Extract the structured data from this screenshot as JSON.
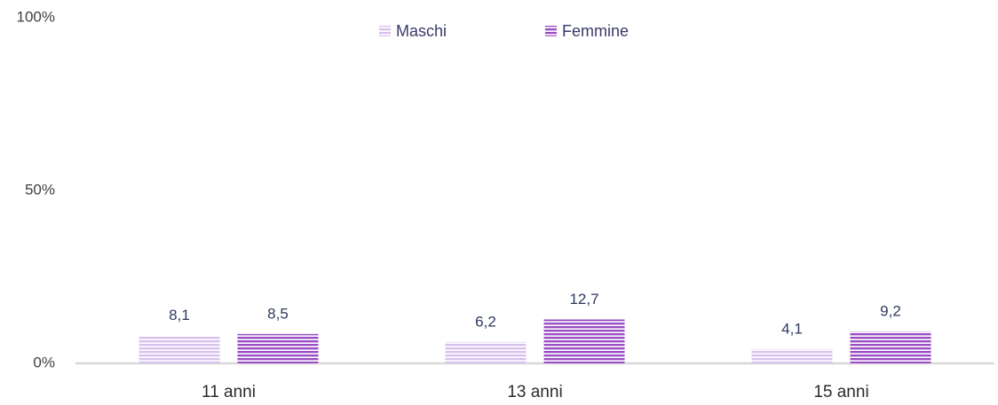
{
  "chart_data": {
    "type": "bar",
    "categories": [
      "11 anni",
      "13 anni",
      "15 anni"
    ],
    "series": [
      {
        "name": "Maschi",
        "color": "#d8c1ee",
        "values": [
          8.1,
          6.2,
          4.1
        ],
        "value_labels": [
          "8,1",
          "6,2",
          "4,1"
        ]
      },
      {
        "name": "Femmine",
        "color": "#9a4ec4",
        "values": [
          8.5,
          12.7,
          9.2
        ],
        "value_labels": [
          "8,5",
          "12,7",
          "9,2"
        ]
      }
    ],
    "ylim": [
      0,
      100
    ],
    "yticks": [
      {
        "value": 0,
        "label": "0%"
      },
      {
        "value": 50,
        "label": "50%"
      },
      {
        "value": 100,
        "label": "100%"
      }
    ],
    "grid": false,
    "legend": "top"
  }
}
